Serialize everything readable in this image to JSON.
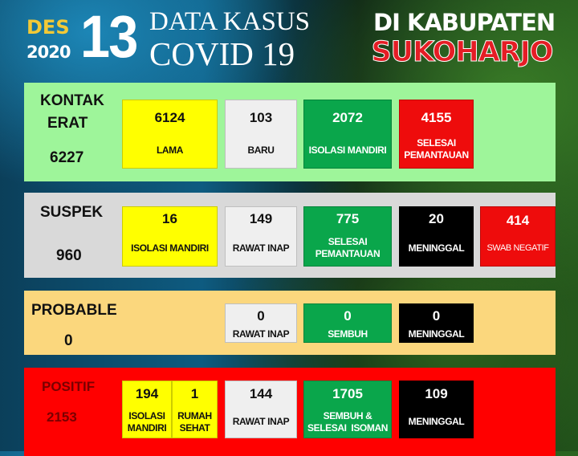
{
  "header": {
    "month": "DES",
    "year": "2020",
    "day": "13",
    "title_line1": "DATA KASUS",
    "title_line2": "COVID 19",
    "region_line1": "DI KABUPATEN",
    "region_line2": "SUKOHARJO"
  },
  "colors": {
    "kontak_bg": "#9ef59a",
    "suspek_bg": "#d9d9d9",
    "probable_bg": "#fbd77d",
    "positif_bg": "#ff0000",
    "yellow": "#ffff00",
    "green": "#0aa64b",
    "red": "#ee0c0c",
    "black": "#000000",
    "white": "#efefef"
  },
  "kontak": {
    "label_line1": "KONTAK",
    "label_line2": "ERAT",
    "total": "6227",
    "boxes": [
      {
        "value": "6124",
        "label": "LAMA"
      },
      {
        "value": "103",
        "label": "BARU"
      },
      {
        "value": "2072",
        "label": "ISOLASI MANDIRI"
      },
      {
        "value": "4155",
        "label_line1": "SELESAI",
        "label_line2": "PEMANTAUAN"
      }
    ]
  },
  "suspek": {
    "label": "SUSPEK",
    "total": "960",
    "boxes": [
      {
        "value": "16",
        "label": "ISOLASI MANDIRI"
      },
      {
        "value": "149",
        "label": "RAWAT INAP"
      },
      {
        "value": "775",
        "label_line1": "SELESAI",
        "label_line2": "PEMANTAUAN"
      },
      {
        "value": "20",
        "label": "MENINGGAL"
      },
      {
        "value": "414",
        "label": "SWAB NEGATIF"
      }
    ]
  },
  "probable": {
    "label": "PROBABLE",
    "total": "0",
    "boxes": [
      {
        "value": "0",
        "label": "RAWAT INAP"
      },
      {
        "value": "0",
        "label": "SEMBUH"
      },
      {
        "value": "0",
        "label": "MENINGGAL"
      }
    ]
  },
  "positif": {
    "label": "POSITIF",
    "total": "2153",
    "boxes": [
      {
        "value": "194",
        "label_line1": "ISOLASI",
        "label_line2": "MANDIRI"
      },
      {
        "value": "1",
        "label_line1": "RUMAH",
        "label_line2": "SEHAT"
      },
      {
        "value": "144",
        "label": "RAWAT INAP"
      },
      {
        "value": "1705",
        "label_line1": "SEMBUH &",
        "label_line2": "SELESAI  ISOMAN"
      },
      {
        "value": "109",
        "label": "MENINGGAL"
      }
    ]
  }
}
